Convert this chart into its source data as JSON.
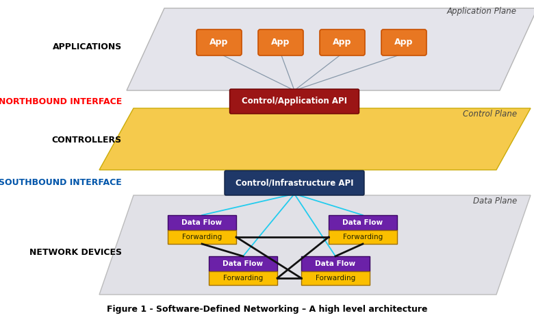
{
  "title": "Figure 1 - Software-Defined Networking – A high level architecture",
  "background_color": "#ffffff",
  "app_plane_label": "Application Plane",
  "control_plane_label": "Control Plane",
  "data_plane_label": "Data Plane",
  "applications_label": "APPLICATIONS",
  "northbound_label": "NORTHBOUND INTERFACE",
  "controllers_label": "CONTROLLERS",
  "southbound_label": "SOUTHBOUND INTERFACE",
  "network_devices_label": "NETWORK DEVICES",
  "app_box_color": "#E87722",
  "app_box_edge_color": "#C85000",
  "control_api_box_color": "#9B1515",
  "infra_api_box_color": "#1F3868",
  "data_flow_top_color": "#6B21A8",
  "data_flow_bottom_color": "#FBBF00",
  "app_plane_fill": "#E0E0E8",
  "app_plane_edge": "#AAAAAA",
  "control_plane_fill": "#F5C842",
  "control_plane_edge": "#C8A800",
  "data_plane_fill": "#D8D8E0",
  "data_plane_edge": "#AAAAAA",
  "northbound_color": "#FF0000",
  "southbound_color": "#0055AA",
  "line_color_app": "#8899AA",
  "cyan_line_color": "#22CCEE",
  "black_line_color": "#111111"
}
